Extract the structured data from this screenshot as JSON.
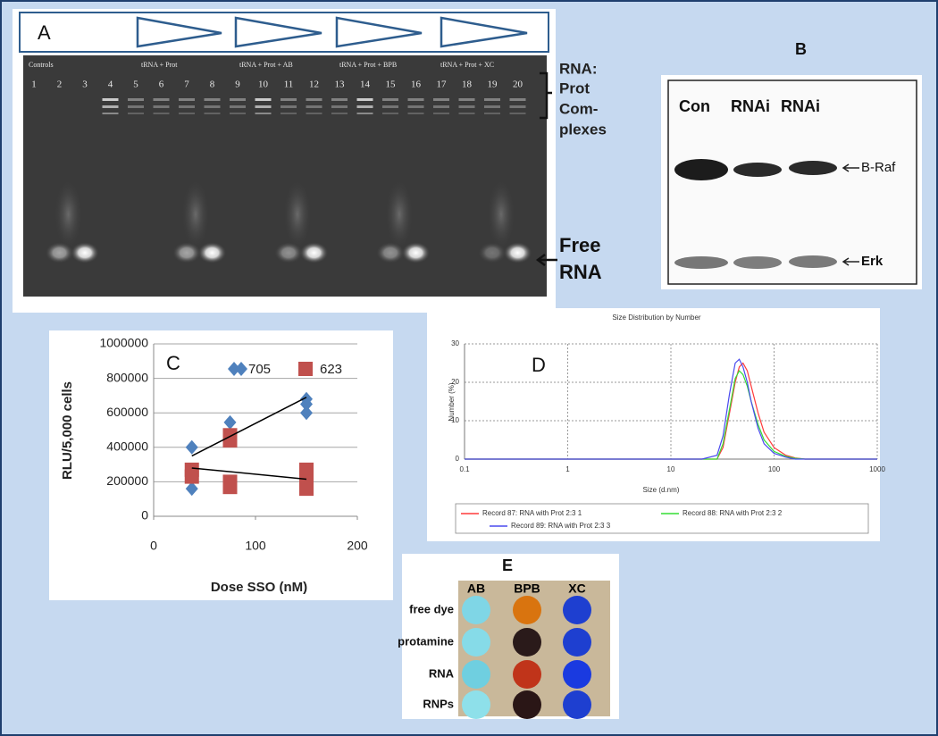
{
  "panel_a": {
    "label": "A",
    "group_labels": [
      "Controls",
      "tRNA + Prot",
      "tRNA + Prot + AB",
      "tRNA + Prot + BPB",
      "tRNA + Prot + XC"
    ],
    "lane_numbers": [
      "1",
      "2",
      "3",
      "4",
      "5",
      "6",
      "7",
      "8",
      "9",
      "10",
      "11",
      "12",
      "13",
      "14",
      "15",
      "16",
      "17",
      "18",
      "19",
      "20"
    ],
    "complex_label": [
      "RNA:",
      "Prot",
      "Com-",
      "plexes"
    ],
    "free_label": [
      "Free",
      "RNA"
    ]
  },
  "panel_b": {
    "label": "B",
    "lanes": [
      "Con",
      "RNAi",
      "RNAi"
    ],
    "bands": [
      "B-Raf",
      "Erk"
    ]
  },
  "panel_e": {
    "label": "E",
    "columns": [
      "AB",
      "BPB",
      "XC"
    ],
    "rows": [
      "free dye",
      "protamine",
      "RNA",
      "RNPs"
    ]
  },
  "chart_data": [
    {
      "type": "scatter",
      "label": "C",
      "xlabel": "Dose SSO (nM)",
      "ylabel": "RLU/5,000 cells",
      "xlim": [
        0,
        200
      ],
      "xticks": [
        0,
        100,
        200
      ],
      "ylim": [
        0,
        1000000
      ],
      "yticks": [
        0,
        200000,
        400000,
        600000,
        800000,
        1000000
      ],
      "grid": "y",
      "series": [
        {
          "name": "705",
          "color": "#4f81bd",
          "marker": "diamond",
          "x": [
            37.5,
            37.5,
            75,
            75,
            150,
            150,
            150
          ],
          "values": [
            400000,
            160000,
            545000,
            440000,
            680000,
            650000,
            600000
          ]
        },
        {
          "name": "623",
          "color": "#c0504d",
          "marker": "square",
          "x": [
            37.5,
            37.5,
            75,
            75,
            75,
            75,
            150,
            150,
            150
          ],
          "values": [
            270000,
            230000,
            470000,
            440000,
            200000,
            170000,
            270000,
            200000,
            160000
          ]
        }
      ],
      "trendlines": [
        {
          "color": "#000000",
          "x": [
            37.5,
            150
          ],
          "values": [
            350000,
            690000
          ]
        },
        {
          "color": "#000000",
          "x": [
            37.5,
            150
          ],
          "values": [
            280000,
            215000
          ]
        }
      ]
    },
    {
      "type": "line",
      "label": "D",
      "title": "Size Distribution by Number",
      "xlabel": "Size (d.nm)",
      "ylabel": "Number (%)",
      "xscale": "log",
      "xlim": [
        0.1,
        1000
      ],
      "xticks": [
        0.1,
        1,
        10,
        100,
        1000
      ],
      "ylim": [
        0,
        30
      ],
      "yticks": [
        0,
        10,
        20,
        30
      ],
      "grid": "both",
      "x": [
        0.1,
        1,
        10,
        20,
        28,
        32,
        37,
        42,
        46,
        50,
        55,
        60,
        70,
        80,
        100,
        130,
        160,
        200,
        300,
        1000
      ],
      "series": [
        {
          "name": "Record 87: RNA with Prot 2:3 1",
          "color": "#ff3b3b",
          "values": [
            0,
            0,
            0,
            0,
            0,
            3,
            12,
            20,
            24,
            25,
            23,
            19,
            12,
            7,
            3,
            1,
            0.3,
            0,
            0,
            0
          ]
        },
        {
          "name": "Record 88: RNA with Prot 2:3 2",
          "color": "#33dd33",
          "values": [
            0,
            0,
            0,
            0,
            0,
            4,
            13,
            21,
            23,
            22,
            19,
            15,
            9,
            5,
            2,
            0.7,
            0.2,
            0,
            0,
            0
          ]
        },
        {
          "name": "Record 89: RNA with Prot 2:3 3",
          "color": "#4a4aee",
          "values": [
            0,
            0,
            0,
            0,
            1,
            6,
            17,
            25,
            26,
            24,
            20,
            15,
            8,
            4,
            1.5,
            0.5,
            0,
            0,
            0,
            0
          ]
        }
      ]
    }
  ]
}
